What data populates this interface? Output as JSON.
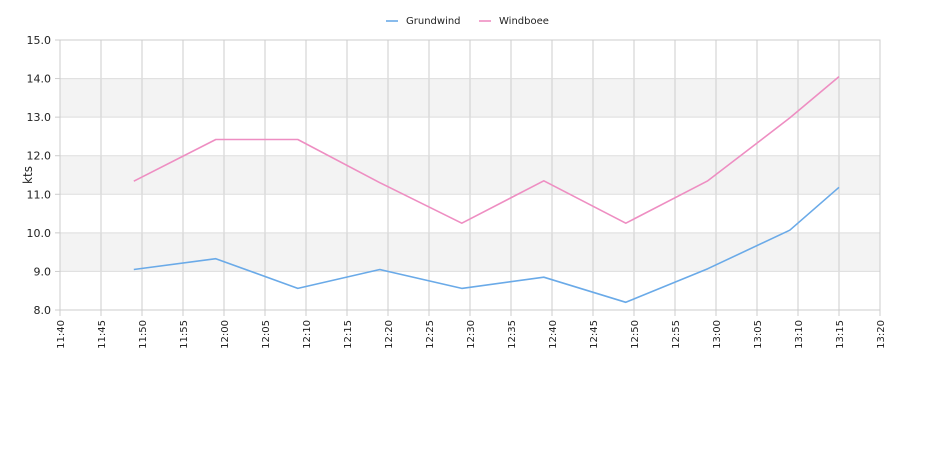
{
  "chart_data": {
    "type": "line",
    "ylabel": "kts",
    "ylim": [
      8.0,
      15.0
    ],
    "y_ticks": [
      "8.0",
      "9.0",
      "10.0",
      "11.0",
      "12.0",
      "13.0",
      "14.0",
      "15.0"
    ],
    "x_ticks": [
      "11:40",
      "11:45",
      "11:50",
      "11:55",
      "12:00",
      "12:05",
      "12:10",
      "12:15",
      "12:20",
      "12:25",
      "12:30",
      "12:35",
      "12:40",
      "12:45",
      "12:50",
      "12:55",
      "13:00",
      "13:05",
      "13:10",
      "13:15",
      "13:20"
    ],
    "xlim": [
      "11:40",
      "13:20"
    ],
    "grid": true,
    "banded_background": true,
    "legend_position": "top-center",
    "series": [
      {
        "name": "Grundwind",
        "color": "#6aaae8",
        "x": [
          "11:49",
          "11:59",
          "12:09",
          "12:19",
          "12:29",
          "12:39",
          "12:49",
          "12:59",
          "13:09",
          "13:15"
        ],
        "values": [
          9.05,
          9.33,
          8.56,
          9.05,
          8.56,
          8.85,
          8.2,
          9.07,
          10.07,
          11.18
        ]
      },
      {
        "name": "Windboee",
        "color": "#ee8ec2",
        "x": [
          "11:49",
          "11:59",
          "12:09",
          "12:19",
          "12:29",
          "12:39",
          "12:49",
          "12:59",
          "13:09",
          "13:15"
        ],
        "values": [
          11.34,
          12.42,
          12.42,
          11.3,
          10.25,
          11.35,
          10.25,
          11.35,
          12.98,
          14.05
        ]
      }
    ]
  }
}
